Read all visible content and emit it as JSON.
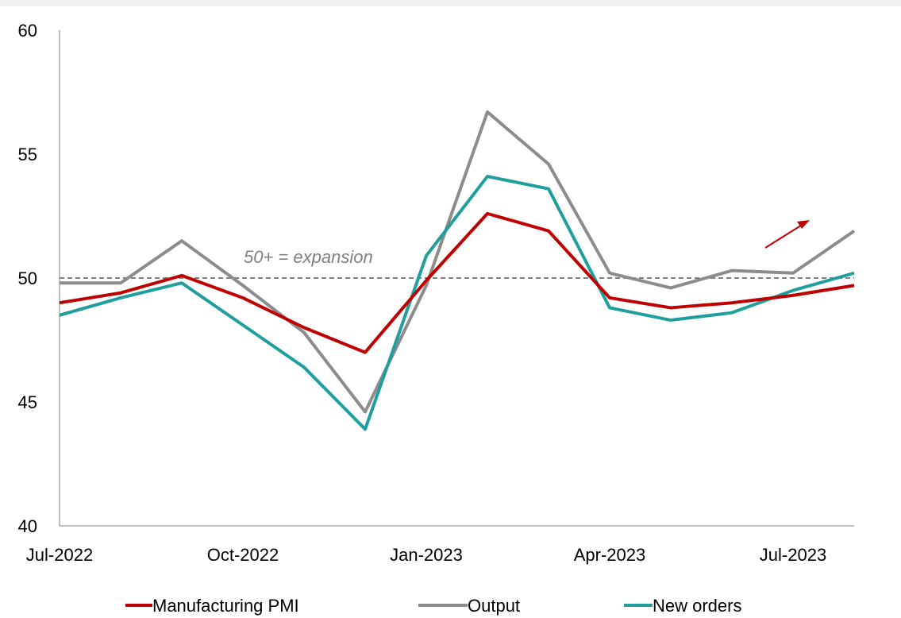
{
  "chart_data": {
    "type": "line",
    "x": [
      "Jul-2022",
      "Aug-2022",
      "Sep-2022",
      "Oct-2022",
      "Nov-2022",
      "Dec-2022",
      "Jan-2023",
      "Feb-2023",
      "Mar-2023",
      "Apr-2023",
      "May-2023",
      "Jun-2023",
      "Jul-2023",
      "Aug-2023"
    ],
    "x_tick_labels": [
      "Jul-2022",
      "Oct-2022",
      "Jan-2023",
      "Apr-2023",
      "Jul-2023"
    ],
    "y_ticks": [
      40,
      45,
      50,
      55,
      60
    ],
    "ylim": [
      40,
      60
    ],
    "title": "",
    "xlabel": "",
    "ylabel": "",
    "grid": false,
    "legend_position": "bottom",
    "series": [
      {
        "name": "Manufacturing PMI",
        "color": "#c00000",
        "values": [
          49.0,
          49.4,
          50.1,
          49.2,
          48.0,
          47.0,
          49.9,
          52.6,
          51.9,
          49.2,
          48.8,
          49.0,
          49.3,
          49.7
        ]
      },
      {
        "name": "Output",
        "color": "#8c8c8c",
        "values": [
          49.8,
          49.8,
          51.5,
          49.7,
          47.8,
          44.6,
          49.7,
          56.7,
          54.6,
          50.2,
          49.6,
          50.3,
          50.2,
          51.9
        ]
      },
      {
        "name": "New orders",
        "color": "#1f9e9e",
        "values": [
          48.5,
          49.2,
          49.8,
          48.1,
          46.4,
          43.9,
          50.9,
          54.1,
          53.6,
          48.8,
          48.3,
          48.6,
          49.5,
          50.2
        ]
      }
    ],
    "reference_line": {
      "value": 50,
      "style": "dashed",
      "color": "#808080"
    },
    "annotations": [
      {
        "text": "50+ = expansion"
      }
    ],
    "arrow": {
      "color": "#c00000",
      "direction": "up-right"
    }
  }
}
